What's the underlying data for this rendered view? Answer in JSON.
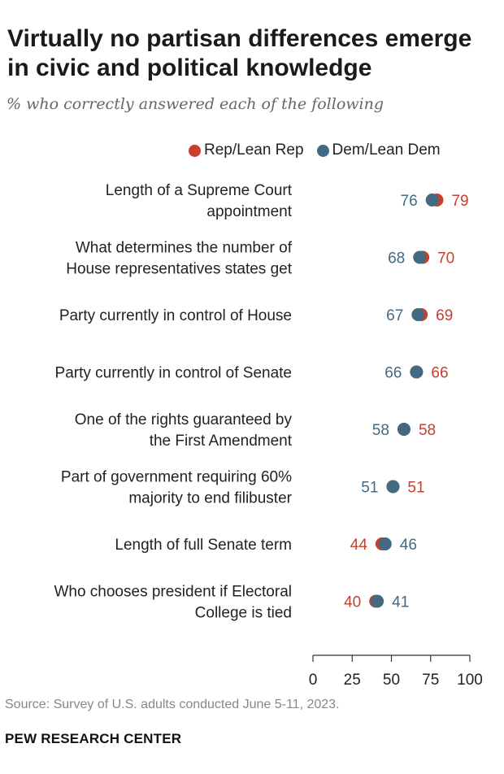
{
  "title": "Virtually no partisan differences emerge in civic and political knowledge",
  "subtitle": "% who correctly answered each of the following",
  "source": "Source: Survey of U.S. adults conducted June 5-11, 2023.",
  "brand": "PEW RESEARCH CENTER",
  "colors": {
    "rep": "#c4402f",
    "dem": "#436a82",
    "axis": "#333333"
  },
  "chart_data": {
    "type": "dot",
    "title": "Virtually no partisan differences emerge in civic and political knowledge",
    "subtitle": "% who correctly answered each of the following",
    "xlabel": "",
    "ylabel": "",
    "xlim": [
      0,
      100
    ],
    "x_ticks": [
      0,
      25,
      50,
      75,
      100
    ],
    "grid": false,
    "legend_position": "top",
    "series": [
      {
        "name": "Rep/Lean Rep",
        "color": "#c4402f",
        "values": [
          79,
          70,
          69,
          66,
          58,
          51,
          44,
          40
        ]
      },
      {
        "name": "Dem/Lean Dem",
        "color": "#436a82",
        "values": [
          76,
          68,
          67,
          66,
          58,
          51,
          46,
          41
        ]
      }
    ],
    "categories": [
      [
        "Length of a Supreme Court",
        "appointment"
      ],
      [
        "What determines the number of",
        "House representatives states get"
      ],
      [
        "Party currently in control of House"
      ],
      [
        "Party currently in control of Senate"
      ],
      [
        "One of the rights guaranteed by",
        "the First Amendment"
      ],
      [
        "Part of government requiring 60%",
        "majority to end filibuster"
      ],
      [
        "Length of full Senate term"
      ],
      [
        "Who chooses president if Electoral",
        "College is tied"
      ]
    ]
  }
}
